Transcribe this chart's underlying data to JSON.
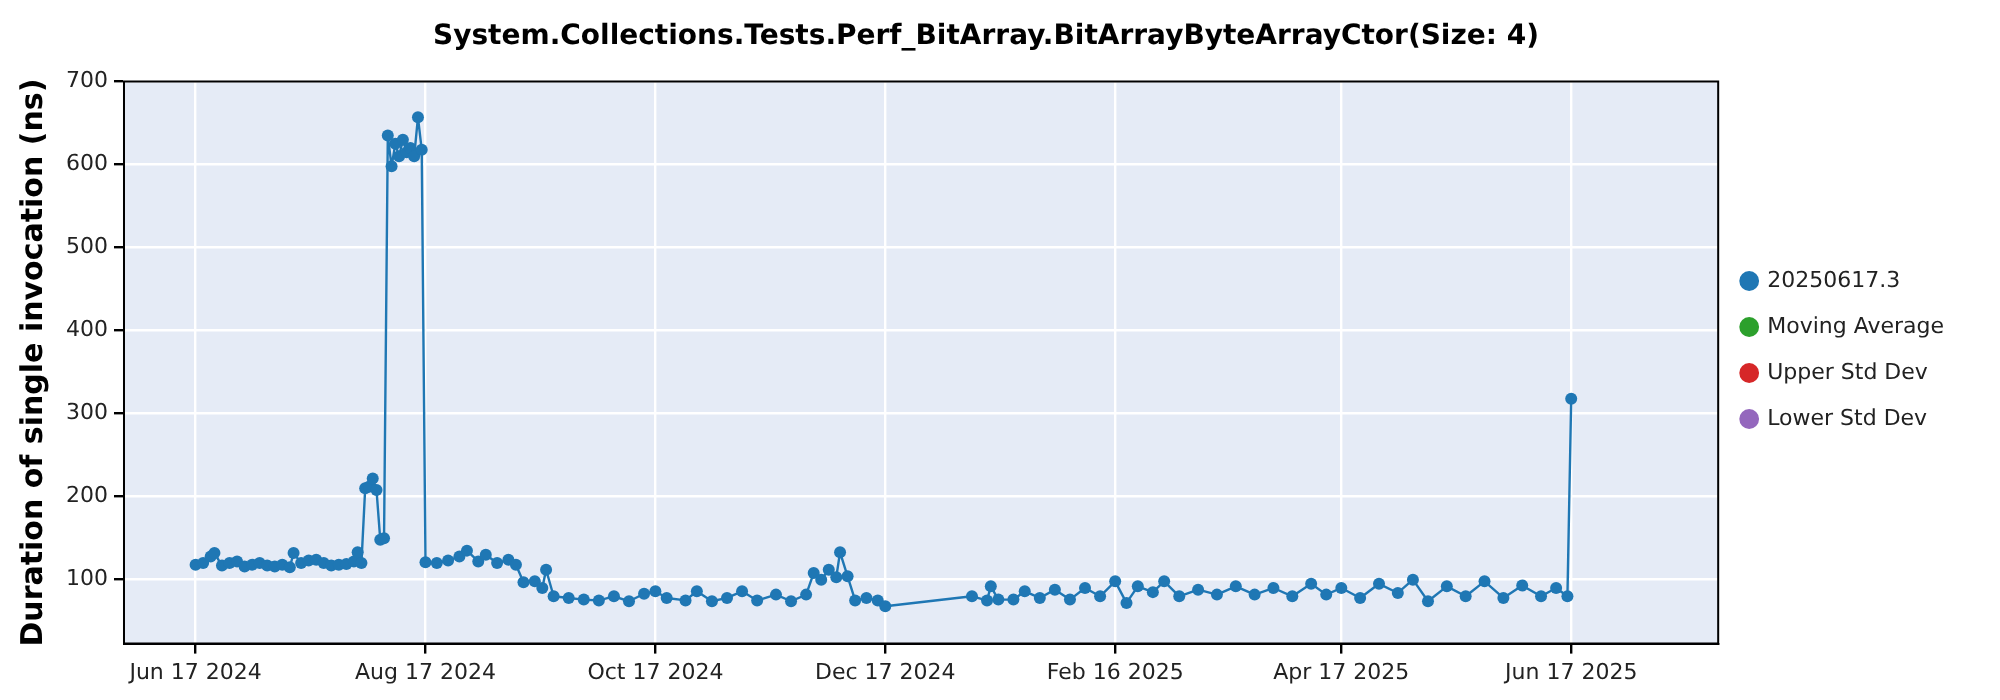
{
  "chart_data": {
    "type": "line",
    "title": "System.Collections.Tests.Perf_BitArray.BitArrayByteArrayCtor(Size: 4)",
    "ylabel": "Duration of single invocation (ns)",
    "xlim": [
      "2024-05-29",
      "2025-07-26"
    ],
    "xticks": [
      {
        "value": "2024-06-17",
        "label": "Jun 17 2024"
      },
      {
        "value": "2024-08-17",
        "label": "Aug 17 2024"
      },
      {
        "value": "2024-10-17",
        "label": "Oct 17 2024"
      },
      {
        "value": "2024-12-17",
        "label": "Dec 17 2024"
      },
      {
        "value": "2025-02-16",
        "label": "Feb 16 2025"
      },
      {
        "value": "2025-04-17",
        "label": "Apr 17 2025"
      },
      {
        "value": "2025-06-17",
        "label": "Jun 17 2025"
      }
    ],
    "ylim": [
      23,
      700
    ],
    "yticks": [
      100,
      200,
      300,
      400,
      500,
      600,
      700
    ],
    "grid": true,
    "legend": "right",
    "marker": "circle",
    "line_style": "solid",
    "series": [
      {
        "name": "20250617.3",
        "color": "#1f77b4",
        "x": [
          "2024-06-17",
          "2024-06-19",
          "2024-06-21",
          "2024-06-22",
          "2024-06-24",
          "2024-06-26",
          "2024-06-28",
          "2024-06-30",
          "2024-07-02",
          "2024-07-04",
          "2024-07-06",
          "2024-07-08",
          "2024-07-10",
          "2024-07-12",
          "2024-07-13",
          "2024-07-15",
          "2024-07-17",
          "2024-07-19",
          "2024-07-21",
          "2024-07-23",
          "2024-07-25",
          "2024-07-27",
          "2024-07-29",
          "2024-07-30",
          "2024-07-31",
          "2024-08-01",
          "2024-08-02",
          "2024-08-03",
          "2024-08-04",
          "2024-08-05",
          "2024-08-06",
          "2024-08-07",
          "2024-08-08",
          "2024-08-09",
          "2024-08-10",
          "2024-08-11",
          "2024-08-12",
          "2024-08-13",
          "2024-08-14",
          "2024-08-15",
          "2024-08-16",
          "2024-08-17",
          "2024-08-20",
          "2024-08-23",
          "2024-08-26",
          "2024-08-28",
          "2024-08-31",
          "2024-09-02",
          "2024-09-05",
          "2024-09-08",
          "2024-09-10",
          "2024-09-12",
          "2024-09-15",
          "2024-09-17",
          "2024-09-18",
          "2024-09-20",
          "2024-09-24",
          "2024-09-28",
          "2024-10-02",
          "2024-10-06",
          "2024-10-10",
          "2024-10-14",
          "2024-10-17",
          "2024-10-20",
          "2024-10-25",
          "2024-10-28",
          "2024-11-01",
          "2024-11-05",
          "2024-11-09",
          "2024-11-13",
          "2024-11-18",
          "2024-11-22",
          "2024-11-26",
          "2024-11-28",
          "2024-11-30",
          "2024-12-02",
          "2024-12-04",
          "2024-12-05",
          "2024-12-07",
          "2024-12-09",
          "2024-12-12",
          "2024-12-15",
          "2024-12-17",
          "2025-01-09",
          "2025-01-13",
          "2025-01-14",
          "2025-01-16",
          "2025-01-20",
          "2025-01-23",
          "2025-01-27",
          "2025-01-31",
          "2025-02-04",
          "2025-02-08",
          "2025-02-12",
          "2025-02-16",
          "2025-02-19",
          "2025-02-22",
          "2025-02-26",
          "2025-03-01",
          "2025-03-05",
          "2025-03-10",
          "2025-03-15",
          "2025-03-20",
          "2025-03-25",
          "2025-03-30",
          "2025-04-04",
          "2025-04-09",
          "2025-04-13",
          "2025-04-17",
          "2025-04-22",
          "2025-04-27",
          "2025-05-02",
          "2025-05-06",
          "2025-05-10",
          "2025-05-15",
          "2025-05-20",
          "2025-05-25",
          "2025-05-30",
          "2025-06-04",
          "2025-06-09",
          "2025-06-13",
          "2025-06-16",
          "2025-06-17"
        ],
        "values": [
          118,
          120,
          128,
          132,
          117,
          120,
          122,
          116,
          118,
          120,
          117,
          116,
          118,
          115,
          132,
          120,
          123,
          124,
          120,
          117,
          118,
          119,
          122,
          133,
          120,
          210,
          212,
          222,
          208,
          148,
          150,
          635,
          598,
          625,
          610,
          630,
          615,
          620,
          610,
          657,
          618,
          121,
          120,
          123,
          128,
          135,
          122,
          130,
          120,
          124,
          118,
          97,
          98,
          90,
          112,
          80,
          78,
          76,
          75,
          80,
          74,
          83,
          86,
          78,
          75,
          86,
          74,
          78,
          86,
          75,
          82,
          74,
          82,
          108,
          100,
          112,
          103,
          133,
          104,
          75,
          78,
          75,
          68,
          80,
          75,
          92,
          76,
          76,
          86,
          78,
          88,
          76,
          90,
          80,
          98,
          72,
          92,
          85,
          98,
          80,
          88,
          82,
          92,
          82,
          90,
          80,
          95,
          82,
          90,
          78,
          95,
          84,
          100,
          74,
          92,
          80,
          98,
          78,
          93,
          80,
          90,
          80,
          318
        ]
      },
      {
        "name": "Moving Average",
        "color": "#2ca02c"
      },
      {
        "name": "Upper Std Dev",
        "color": "#d62728"
      },
      {
        "name": "Lower Std Dev",
        "color": "#9467bd"
      }
    ]
  }
}
